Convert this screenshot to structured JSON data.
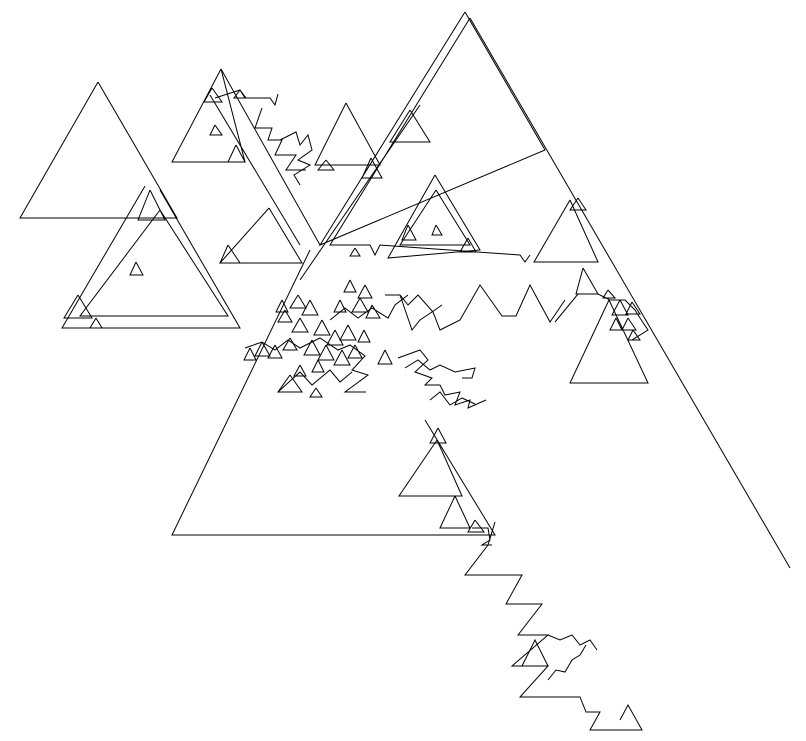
{
  "drawing": {
    "background": "#ffffff",
    "stroke_color": "#000000"
  }
}
